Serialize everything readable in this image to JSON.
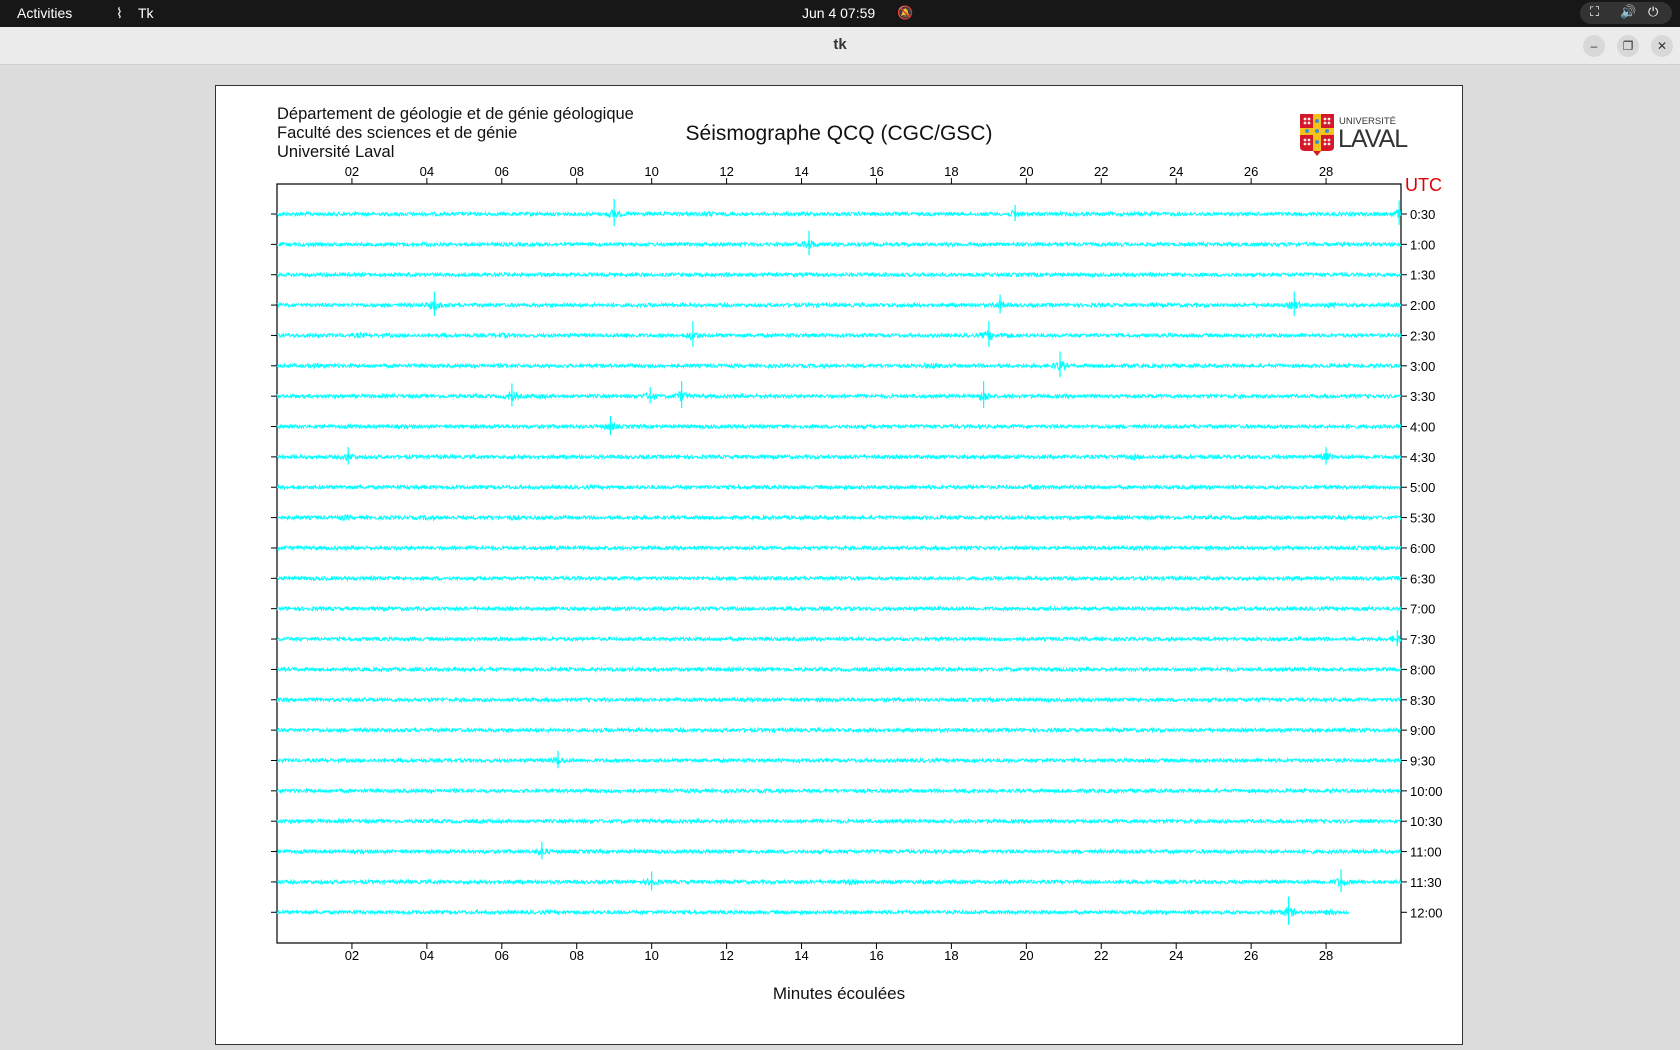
{
  "topbar": {
    "activities": "Activities",
    "app_name": "Tk",
    "app_icon": "tk-feather-icon",
    "datetime": "Jun 4  07:59",
    "notification_icon": "bell-off-icon",
    "system_icons": [
      "network-icon",
      "volume-icon",
      "power-icon"
    ]
  },
  "window": {
    "title": "tk",
    "buttons": [
      "minimize",
      "restore",
      "close"
    ]
  },
  "header": {
    "lines": [
      "Département de géologie et de génie géologique",
      "Faculté des sciences et de génie",
      "Université Laval"
    ],
    "title": "Séismographe QCQ (CGC/GSC)",
    "logo_text": [
      "UNIVERSITÉ",
      "LAVAL"
    ]
  },
  "chart_data": {
    "type": "line",
    "title": "Séismographe QCQ (CGC/GSC)",
    "xlabel": "Minutes écoulées",
    "ylabel": "UTC",
    "xlim": [
      0,
      30
    ],
    "x_ticks": [
      "02",
      "04",
      "06",
      "08",
      "10",
      "12",
      "14",
      "16",
      "18",
      "20",
      "22",
      "24",
      "26",
      "28"
    ],
    "rows": [
      "0:30",
      "1:00",
      "1:30",
      "2:00",
      "2:30",
      "3:00",
      "3:30",
      "4:00",
      "4:30",
      "5:00",
      "5:30",
      "6:00",
      "6:30",
      "7:00",
      "7:30",
      "8:00",
      "8:30",
      "9:00",
      "9:30",
      "10:00",
      "10:30",
      "11:00",
      "11:30",
      "12:00"
    ],
    "trace_color": "#00ffff",
    "last_row_end_minute": 28.6,
    "events": [
      {
        "row": "0:30",
        "minute": 9.0,
        "amplitude": 1.0
      },
      {
        "row": "0:30",
        "minute": 11.5,
        "amplitude": 0.3
      },
      {
        "row": "0:30",
        "minute": 19.7,
        "amplitude": 0.6
      },
      {
        "row": "0:30",
        "minute": 29.95,
        "amplitude": 0.9
      },
      {
        "row": "1:00",
        "minute": 14.2,
        "amplitude": 0.9
      },
      {
        "row": "2:00",
        "minute": 4.2,
        "amplitude": 0.9
      },
      {
        "row": "2:00",
        "minute": 19.3,
        "amplitude": 0.7
      },
      {
        "row": "2:00",
        "minute": 27.15,
        "amplitude": 0.9
      },
      {
        "row": "2:00",
        "minute": 28.15,
        "amplitude": 0.3
      },
      {
        "row": "2:30",
        "minute": 2.2,
        "amplitude": 0.25
      },
      {
        "row": "2:30",
        "minute": 6.0,
        "amplitude": 0.3
      },
      {
        "row": "2:30",
        "minute": 9.4,
        "amplitude": 0.3
      },
      {
        "row": "2:30",
        "minute": 11.1,
        "amplitude": 0.95
      },
      {
        "row": "2:30",
        "minute": 19.0,
        "amplitude": 0.95
      },
      {
        "row": "2:30",
        "minute": 19.5,
        "amplitude": 0.3
      },
      {
        "row": "3:00",
        "minute": 1.05,
        "amplitude": 0.25
      },
      {
        "row": "3:00",
        "minute": 17.5,
        "amplitude": 0.4
      },
      {
        "row": "3:00",
        "minute": 20.9,
        "amplitude": 0.95
      },
      {
        "row": "3:30",
        "minute": 6.27,
        "amplitude": 0.85
      },
      {
        "row": "3:30",
        "minute": 7.0,
        "amplitude": 0.3
      },
      {
        "row": "3:30",
        "minute": 9.96,
        "amplitude": 0.6
      },
      {
        "row": "3:30",
        "minute": 10.8,
        "amplitude": 1.0
      },
      {
        "row": "3:30",
        "minute": 18.86,
        "amplitude": 1.0
      },
      {
        "row": "4:00",
        "minute": 8.9,
        "amplitude": 0.7
      },
      {
        "row": "4:30",
        "minute": 1.9,
        "amplitude": 0.65
      },
      {
        "row": "4:30",
        "minute": 22.9,
        "amplitude": 0.3
      },
      {
        "row": "4:30",
        "minute": 28.0,
        "amplitude": 0.65
      },
      {
        "row": "5:00",
        "minute": 20.2,
        "amplitude": 0.25
      },
      {
        "row": "5:30",
        "minute": 1.8,
        "amplitude": 0.3
      },
      {
        "row": "5:30",
        "minute": 4.06,
        "amplitude": 0.3
      },
      {
        "row": "5:30",
        "minute": 6.3,
        "amplitude": 0.25
      },
      {
        "row": "7:00",
        "minute": 29.1,
        "amplitude": 0.3
      },
      {
        "row": "7:30",
        "minute": 29.9,
        "amplitude": 0.6
      },
      {
        "row": "9:30",
        "minute": 7.5,
        "amplitude": 0.65
      },
      {
        "row": "10:00",
        "minute": 18.5,
        "amplitude": 0.25
      },
      {
        "row": "11:00",
        "minute": 7.07,
        "amplitude": 0.65
      },
      {
        "row": "11:30",
        "minute": 10.0,
        "amplitude": 0.7
      },
      {
        "row": "11:30",
        "minute": 15.3,
        "amplitude": 0.3
      },
      {
        "row": "11:30",
        "minute": 28.4,
        "amplitude": 0.85
      },
      {
        "row": "12:00",
        "minute": 26.6,
        "amplitude": 0.35
      },
      {
        "row": "12:00",
        "minute": 27.0,
        "amplitude": 1.05
      },
      {
        "row": "12:00",
        "minute": 28.1,
        "amplitude": 0.35
      }
    ]
  }
}
